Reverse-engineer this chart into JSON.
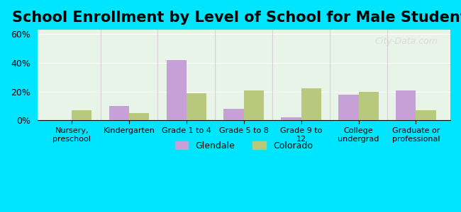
{
  "title": "School Enrollment by Level of School for Male Students",
  "categories": [
    "Nursery,\npreschool",
    "Kindergarten",
    "Grade 1 to 4",
    "Grade 5 to 8",
    "Grade 9 to\n12",
    "College\nundergrad",
    "Graduate or\nprofessional"
  ],
  "glendale": [
    0,
    10,
    42,
    8,
    2,
    18,
    21
  ],
  "colorado": [
    7,
    5,
    19,
    21,
    22,
    20,
    7
  ],
  "glendale_color": "#c8a0d8",
  "colorado_color": "#b8c87c",
  "background_outer": "#00e5ff",
  "background_inner_top": "#e8f4e8",
  "background_inner_bottom": "#f0f8e8",
  "title_fontsize": 15,
  "ylim": [
    0,
    63
  ],
  "yticks": [
    0,
    20,
    40,
    60
  ],
  "ytick_labels": [
    "0%",
    "20%",
    "40%",
    "60%"
  ],
  "legend_labels": [
    "Glendale",
    "Colorado"
  ],
  "bar_width": 0.35,
  "watermark": "City-Data.com"
}
